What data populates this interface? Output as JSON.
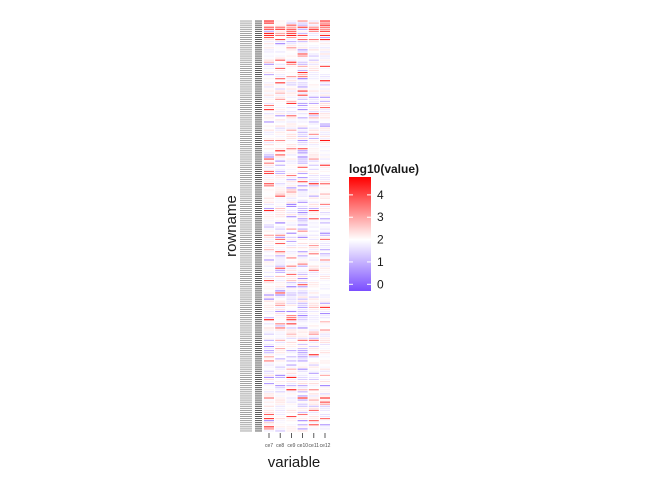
{
  "chart_data": {
    "type": "heatmap",
    "xlabel": "variable",
    "ylabel": "rowname",
    "x_categories": [
      "ce7",
      "ce8",
      "ce9",
      "ce10",
      "ce11",
      "ce12"
    ],
    "row_count": 200,
    "row_labels_legible": false,
    "legend": {
      "title": "log10(value)",
      "ticks": [
        0,
        1,
        2,
        3,
        4
      ],
      "tick_labels": [
        "0",
        "1",
        "2",
        "3",
        "4"
      ],
      "placement": "right",
      "range": [
        -0.3,
        4.8
      ]
    },
    "color_scale": {
      "low": "#7a4dff",
      "mid": "#ffffff",
      "high": "#ff0000",
      "midpoint": 2
    },
    "grid": false,
    "notes": "Per-cell values are not legible; the cells are drawn as thin horizontal segments colored along the log10 scale, most near the midpoint (white/light), with scattered purple (low) and orange/red (high) cells."
  }
}
